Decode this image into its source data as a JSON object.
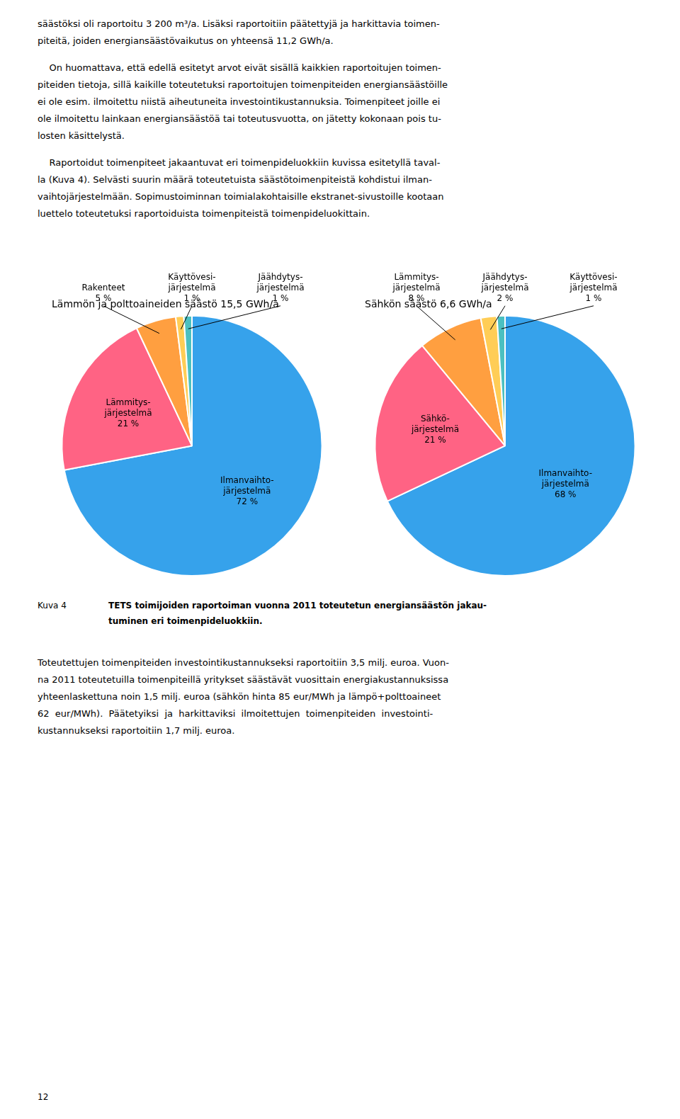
{
  "text_before": [
    "säästöksi oli raportoitu 3 200 m³/a. Lisäksi raportoitiin päätettyjä ja harkittavia toimen-",
    "piteitä, joiden energiansäästövaikutus on yhteensä 11,2 GWh/a.",
    "    On huomattava, että edellä esitetyt arvot eivät sisällä kaikkien raportoitujen toimen-",
    "piteiden tietoja, sillä kaikille toteutetuksi raportoitujen toimenpiteiden energiansäästöille",
    "ei ole esim. ilmoitettu niistä aiheutuneita investointikustannuksia. Toimenpiteet joille ei",
    "ole ilmoitettu lainkaan energiansäästöä tai toteutusvuotta, on jätetty kokonaan pois tu-",
    "losten käsittelystä.",
    "    Raportoidut toimenpiteet jakaantuvat eri toimenpideluokkiin kuvissa esitetyllä taval-",
    "la (Kuva 4). Selvästi suurin määrä toteutetuista säästötoimenpiteistä kohdistui ilman-",
    "vaihtojärjestelmään. Sopimustoiminnan toimialakohtaisille ekstranet-sivustoille kootaan",
    "luettelo toteutetuksi raportoiduista toimenpiteistä toimenpideluokittain."
  ],
  "chart_data": [
    {
      "type": "pie",
      "title": "Lämmön ja polttoaineiden säästö 15,5 GWh/a",
      "categories": [
        "Ilmanvaihto-järjestelmä",
        "Lämmitys-järjestelmä",
        "Rakenteet",
        "Käyttövesi-järjestelmä",
        "Jäähdytys-järjestelmä"
      ],
      "values": [
        72,
        21,
        5,
        1,
        1
      ],
      "value_labels": [
        "72 %",
        "21 %",
        "5 %",
        "1 %",
        "1 %"
      ],
      "data_labels": true
    },
    {
      "type": "pie",
      "title": "Sähkön säästö 6,6 GWh/a",
      "categories": [
        "Ilmanvaihto-järjestelmä",
        "Sähkö-järjestelmä",
        "Lämmitys-järjestelmä",
        "Jäähdytys-järjestelmä",
        "Käyttövesi-järjestelmä"
      ],
      "values": [
        68,
        21,
        8,
        2,
        1
      ],
      "value_labels": [
        "68 %",
        "21 %",
        "8 %",
        "2 %",
        "1 %"
      ],
      "data_labels": true
    }
  ],
  "caption_label": "Kuva 4",
  "caption_lines": [
    "TETS toimijoiden raportoiman vuonna 2011 toteutetun energiansäästön jakau-",
    "tuminen eri toimenpideluokkiin."
  ],
  "text_after": [
    "Toteutettujen toimenpiteiden investointikustannukseksi raportoitiin 3,5 milj. euroa. Vuon-",
    "na 2011 toteutetuilla toimenpiteillä yritykset säästävät vuosittain energiakustannuksissa",
    "yhteenlaskettuna noin 1,5 milj. euroa (sähkön hinta 85 eur/MWh ja lämpö+polttoaineet",
    "62  eur/MWh).  Päätetyiksi  ja  harkittaviksi  ilmoitettujen  toimenpiteiden  investointi-",
    "kustannukseksi raportoitiin 1,7 milj. euroa."
  ],
  "page_number": "12"
}
